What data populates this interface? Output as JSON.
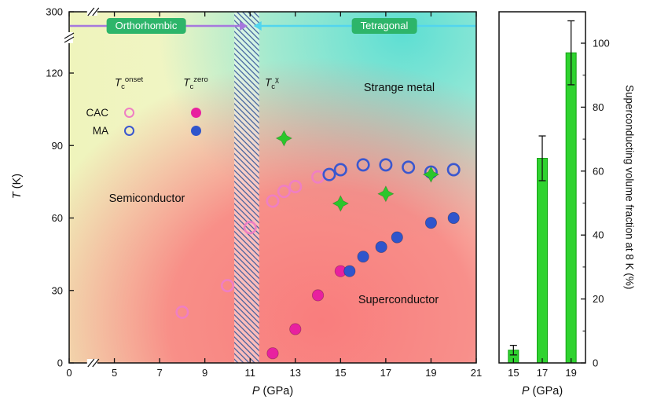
{
  "axes": {
    "left_y": {
      "sym": "T",
      "unit": "(K)"
    },
    "left_x": {
      "sym": "P",
      "unit": "(GPa)"
    },
    "right_x": {
      "sym": "P",
      "unit": "(GPa)"
    },
    "right_y": "Superconducting volume fraction at 8 K (%)"
  },
  "phases": {
    "orthorhombic": "Orthorhombic",
    "tetragonal": "Tetragonal"
  },
  "regions": {
    "semiconductor": "Semiconductor",
    "strange_metal": "Strange metal",
    "superconductor": "Superconductor"
  },
  "region_colors": {
    "semiconductor": "#eff4bc",
    "strange_metal": "#55ddd3",
    "superconductor": "#f97d7d"
  },
  "legend": {
    "cols": [
      {
        "sym": "T",
        "sub": "c",
        "sup": "onset"
      },
      {
        "sym": "T",
        "sub": "c",
        "sup": "zero"
      },
      {
        "sym": "T",
        "sub": "c",
        "sup": "χ"
      }
    ],
    "rows": [
      "CAC",
      "MA"
    ]
  },
  "ui": {
    "badge_bg": "#2db56a",
    "arrow_purple": "#a678dd",
    "arrow_cyan": "#52d5ee",
    "frame": "#111111",
    "hatch_line": "#3a5b9b"
  },
  "chart_data": [
    {
      "type": "scatter",
      "title": "Pressure–temperature phase diagram",
      "xlabel": "P (GPa)",
      "ylabel": "T (K)",
      "x_ticks": [
        0,
        5,
        7,
        9,
        11,
        13,
        15,
        17,
        19,
        21
      ],
      "y_ticks": [
        0,
        30,
        60,
        90,
        120,
        300
      ],
      "x_break_between": [
        0,
        5
      ],
      "y_break_between": [
        120,
        300
      ],
      "xlim": [
        0,
        21
      ],
      "ylim": [
        0,
        300
      ],
      "phase_boundary_GPa": [
        10.3,
        11.4
      ],
      "region_labels": [
        "Semiconductor",
        "Strange metal",
        "Superconductor"
      ],
      "series": [
        {
          "id": "cac-onset",
          "name": "CAC Tc onset",
          "marker": "open-circle",
          "color": "#ef7fc3",
          "points": [
            [
              8,
              21
            ],
            [
              10,
              32
            ],
            [
              11,
              56
            ],
            [
              12,
              67
            ],
            [
              12.5,
              71
            ],
            [
              13,
              73
            ],
            [
              14,
              77
            ]
          ]
        },
        {
          "id": "ma-onset",
          "name": "MA Tc onset",
          "marker": "open-circle",
          "color": "#3a57cf",
          "points": [
            [
              14.5,
              78
            ],
            [
              15,
              80
            ],
            [
              16,
              82
            ],
            [
              17,
              82
            ],
            [
              18,
              81
            ],
            [
              19,
              79
            ],
            [
              20,
              80
            ]
          ]
        },
        {
          "id": "cac-zero",
          "name": "CAC Tc zero",
          "marker": "filled-circle",
          "color": "#e8219f",
          "points": [
            [
              12,
              4
            ],
            [
              13,
              14
            ],
            [
              14,
              28
            ],
            [
              15,
              38
            ]
          ]
        },
        {
          "id": "ma-zero",
          "name": "MA Tc zero",
          "marker": "filled-circle",
          "color": "#2f55cc",
          "points": [
            [
              15.4,
              38
            ],
            [
              16,
              44
            ],
            [
              16.8,
              48
            ],
            [
              17.5,
              52
            ],
            [
              19,
              58
            ],
            [
              20,
              60
            ]
          ]
        },
        {
          "id": "tc-chi",
          "name": "Tc chi",
          "marker": "star4",
          "color": "#2bc62b",
          "points": [
            [
              12.5,
              93
            ],
            [
              15,
              66
            ],
            [
              17,
              70
            ],
            [
              19,
              78
            ]
          ]
        }
      ]
    },
    {
      "type": "bar",
      "title": "Superconducting volume fraction",
      "categories": [
        "15",
        "17",
        "19"
      ],
      "values": [
        4,
        64,
        97
      ],
      "errors": [
        1.5,
        7,
        10
      ],
      "xlabel": "P (GPa)",
      "ylabel": "Superconducting volume fraction at 8 K (%)",
      "y_ticks": [
        0,
        20,
        40,
        60,
        80,
        100
      ],
      "ylim": [
        0,
        110
      ],
      "bar_color": "#2fd32f"
    }
  ]
}
